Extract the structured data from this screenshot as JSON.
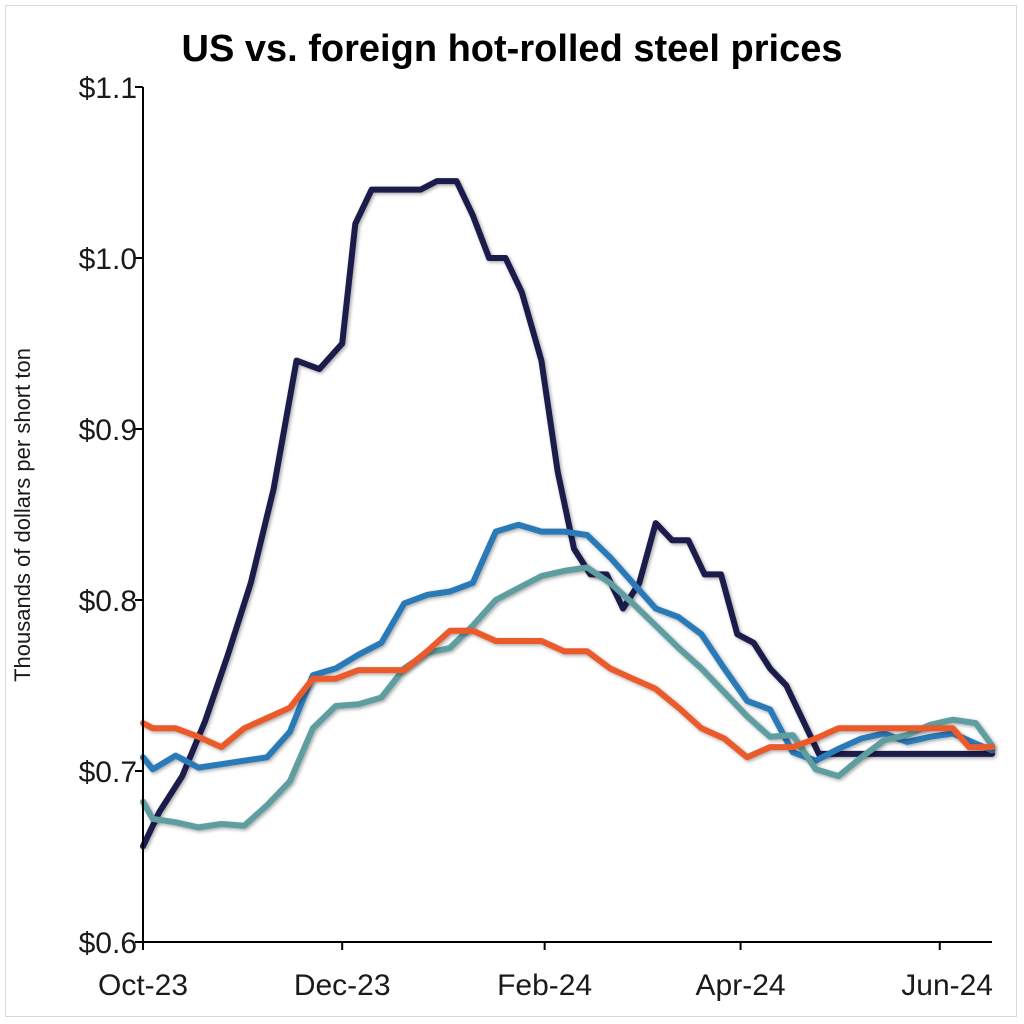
{
  "chart_data": {
    "type": "line",
    "title": "US vs. foreign hot-rolled steel prices",
    "xlabel": "",
    "ylabel": "Thousands of dollars per short ton",
    "ylim": [
      0.6,
      1.1
    ],
    "y_ticks": [
      0.6,
      0.7,
      0.8,
      0.9,
      1.0,
      1.1
    ],
    "y_tick_labels": [
      "$0.6",
      "$0.7",
      "$0.8",
      "$0.9",
      "$1.0",
      "$1.1"
    ],
    "x_range": [
      "2023-10-01",
      "2024-06-17"
    ],
    "x_tick_dates": [
      "2023-10-01",
      "2023-12-01",
      "2024-02-01",
      "2024-04-01",
      "2024-06-01"
    ],
    "x_tick_labels": [
      "Oct-23",
      "Dec-23",
      "Feb-24",
      "Apr-24",
      "Jun-24"
    ],
    "grid": false,
    "legend": "none",
    "series": [
      {
        "color": "#1b1f4b",
        "x": [
          "2023-10-01",
          "2023-10-06",
          "2023-10-13",
          "2023-10-20",
          "2023-10-27",
          "2023-11-03",
          "2023-11-10",
          "2023-11-17",
          "2023-11-24",
          "2023-12-01",
          "2023-12-05",
          "2023-12-10",
          "2023-12-15",
          "2023-12-20",
          "2023-12-25",
          "2023-12-30",
          "2024-01-05",
          "2024-01-10",
          "2024-01-15",
          "2024-01-20",
          "2024-01-25",
          "2024-01-31",
          "2024-02-05",
          "2024-02-10",
          "2024-02-15",
          "2024-02-20",
          "2024-02-25",
          "2024-03-01",
          "2024-03-06",
          "2024-03-11",
          "2024-03-16",
          "2024-03-21",
          "2024-03-26",
          "2024-03-31",
          "2024-04-05",
          "2024-04-10",
          "2024-04-15",
          "2024-04-20",
          "2024-04-25",
          "2024-04-30",
          "2024-05-05",
          "2024-05-10",
          "2024-05-15",
          "2024-05-20",
          "2024-05-25",
          "2024-05-30",
          "2024-06-04",
          "2024-06-09",
          "2024-06-17"
        ],
        "values": [
          0.656,
          0.676,
          0.697,
          0.729,
          0.768,
          0.81,
          0.865,
          0.94,
          0.935,
          0.95,
          1.02,
          1.04,
          1.04,
          1.04,
          1.04,
          1.045,
          1.045,
          1.025,
          1.0,
          1.0,
          0.98,
          0.94,
          0.875,
          0.83,
          0.815,
          0.815,
          0.795,
          0.81,
          0.845,
          0.835,
          0.835,
          0.815,
          0.815,
          0.78,
          0.775,
          0.76,
          0.75,
          0.73,
          0.71,
          0.71,
          0.71,
          0.71,
          0.71,
          0.71,
          0.71,
          0.71,
          0.71,
          0.71,
          0.71
        ]
      },
      {
        "color": "#2a7ab8",
        "x": [
          "2023-10-01",
          "2023-10-04",
          "2023-10-11",
          "2023-10-18",
          "2023-10-25",
          "2023-11-01",
          "2023-11-08",
          "2023-11-15",
          "2023-11-22",
          "2023-11-29",
          "2023-12-06",
          "2023-12-13",
          "2023-12-20",
          "2023-12-27",
          "2024-01-03",
          "2024-01-10",
          "2024-01-17",
          "2024-01-24",
          "2024-01-31",
          "2024-02-07",
          "2024-02-14",
          "2024-02-21",
          "2024-02-28",
          "2024-03-06",
          "2024-03-13",
          "2024-03-20",
          "2024-03-27",
          "2024-04-03",
          "2024-04-10",
          "2024-04-17",
          "2024-04-24",
          "2024-05-01",
          "2024-05-08",
          "2024-05-15",
          "2024-05-22",
          "2024-05-29",
          "2024-06-05",
          "2024-06-12",
          "2024-06-17"
        ],
        "values": [
          0.708,
          0.701,
          0.709,
          0.702,
          0.704,
          0.706,
          0.708,
          0.723,
          0.756,
          0.76,
          0.768,
          0.775,
          0.798,
          0.803,
          0.805,
          0.81,
          0.84,
          0.844,
          0.84,
          0.84,
          0.838,
          0.825,
          0.81,
          0.795,
          0.79,
          0.78,
          0.76,
          0.741,
          0.736,
          0.711,
          0.706,
          0.713,
          0.719,
          0.722,
          0.717,
          0.72,
          0.722,
          0.716,
          0.712
        ]
      },
      {
        "color": "#5f9ea0",
        "x": [
          "2023-10-01",
          "2023-10-04",
          "2023-10-11",
          "2023-10-18",
          "2023-10-25",
          "2023-11-01",
          "2023-11-08",
          "2023-11-15",
          "2023-11-22",
          "2023-11-29",
          "2023-12-06",
          "2023-12-13",
          "2023-12-20",
          "2023-12-27",
          "2024-01-03",
          "2024-01-10",
          "2024-01-17",
          "2024-01-24",
          "2024-01-31",
          "2024-02-07",
          "2024-02-14",
          "2024-02-21",
          "2024-02-28",
          "2024-03-06",
          "2024-03-13",
          "2024-03-20",
          "2024-03-27",
          "2024-04-03",
          "2024-04-10",
          "2024-04-17",
          "2024-04-24",
          "2024-05-01",
          "2024-05-08",
          "2024-05-15",
          "2024-05-22",
          "2024-05-29",
          "2024-06-05",
          "2024-06-12",
          "2024-06-17"
        ],
        "values": [
          0.682,
          0.672,
          0.67,
          0.667,
          0.669,
          0.668,
          0.68,
          0.694,
          0.725,
          0.738,
          0.739,
          0.743,
          0.76,
          0.769,
          0.772,
          0.785,
          0.8,
          0.807,
          0.814,
          0.817,
          0.819,
          0.81,
          0.798,
          0.785,
          0.772,
          0.76,
          0.746,
          0.732,
          0.72,
          0.721,
          0.701,
          0.697,
          0.708,
          0.718,
          0.721,
          0.727,
          0.73,
          0.728,
          0.715
        ]
      },
      {
        "color": "#ea5a2b",
        "x": [
          "2023-10-01",
          "2023-10-04",
          "2023-10-11",
          "2023-10-18",
          "2023-10-25",
          "2023-11-01",
          "2023-11-08",
          "2023-11-15",
          "2023-11-22",
          "2023-11-29",
          "2023-12-06",
          "2023-12-13",
          "2023-12-20",
          "2023-12-27",
          "2024-01-03",
          "2024-01-10",
          "2024-01-17",
          "2024-01-24",
          "2024-01-31",
          "2024-02-07",
          "2024-02-14",
          "2024-02-21",
          "2024-02-28",
          "2024-03-06",
          "2024-03-13",
          "2024-03-20",
          "2024-03-27",
          "2024-04-03",
          "2024-04-10",
          "2024-04-17",
          "2024-04-24",
          "2024-05-01",
          "2024-05-08",
          "2024-05-15",
          "2024-05-22",
          "2024-05-29",
          "2024-06-05",
          "2024-06-10",
          "2024-06-17"
        ],
        "values": [
          0.728,
          0.725,
          0.725,
          0.72,
          0.714,
          0.725,
          0.731,
          0.737,
          0.754,
          0.754,
          0.759,
          0.759,
          0.759,
          0.77,
          0.782,
          0.782,
          0.776,
          0.776,
          0.776,
          0.77,
          0.77,
          0.76,
          0.754,
          0.748,
          0.737,
          0.725,
          0.719,
          0.708,
          0.714,
          0.714,
          0.719,
          0.725,
          0.725,
          0.725,
          0.725,
          0.725,
          0.725,
          0.714,
          0.714
        ]
      }
    ]
  }
}
